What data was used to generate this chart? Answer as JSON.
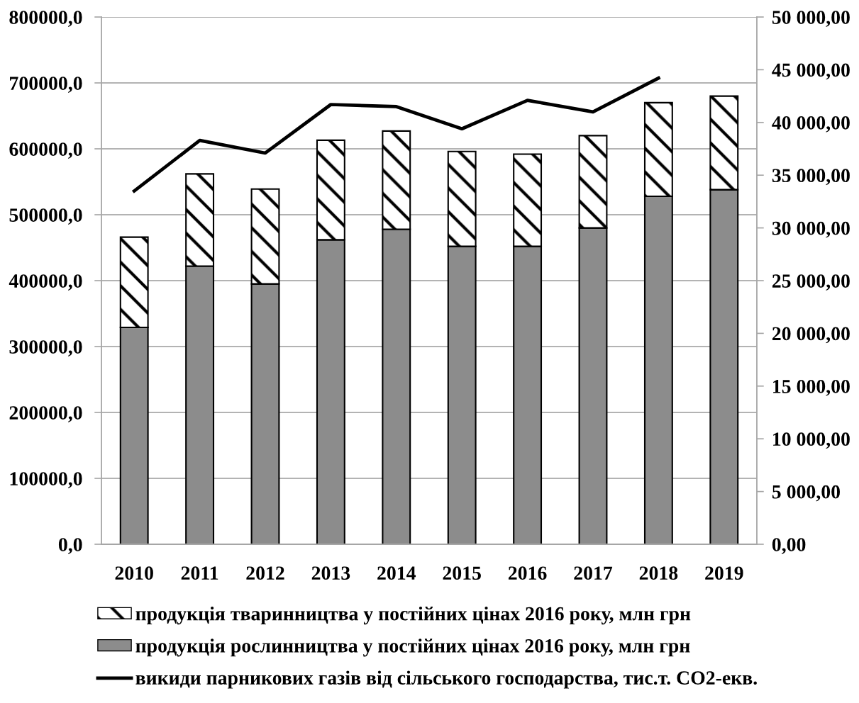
{
  "chart_data": {
    "type": "bar",
    "stacked": true,
    "categories": [
      "2010",
      "2011",
      "2012",
      "2013",
      "2014",
      "2015",
      "2016",
      "2017",
      "2018",
      "2019"
    ],
    "series": [
      {
        "name": "продукція рослинництва у постійних цінах 2016 року, млн грн",
        "color": "#8c8c8c",
        "values": [
          329000,
          422000,
          395000,
          462000,
          478000,
          452000,
          452000,
          480000,
          528000,
          538000
        ]
      },
      {
        "name": "продукція тваринництва у постійних цінах 2016 року, млн грн",
        "color": "#000000",
        "values": [
          137000,
          140000,
          144000,
          151000,
          149000,
          144000,
          140000,
          140000,
          142000,
          142000
        ]
      },
      {
        "name": "викиди парникових газів від сільського господарства, тис.т. СО2-екв.",
        "type": "line",
        "axis": "y2",
        "color": "#000000",
        "values": [
          33500,
          38300,
          37100,
          41700,
          41500,
          39400,
          42100,
          41000,
          44200,
          null
        ]
      }
    ],
    "ylim": [
      0,
      800000
    ],
    "yticks": [
      {
        "value": 0,
        "label": "0,0"
      },
      {
        "value": 100000,
        "label": "100000,0"
      },
      {
        "value": 200000,
        "label": "200000,0"
      },
      {
        "value": 300000,
        "label": "300000,0"
      },
      {
        "value": 400000,
        "label": "400000,0"
      },
      {
        "value": 500000,
        "label": "500000,0"
      },
      {
        "value": 600000,
        "label": "600000,0"
      },
      {
        "value": 700000,
        "label": "700000,0"
      },
      {
        "value": 800000,
        "label": "800000,0"
      }
    ],
    "y2lim": [
      0,
      50000
    ],
    "y2ticks": [
      {
        "value": 0,
        "label": "0,00"
      },
      {
        "value": 5000,
        "label": "5 000,00"
      },
      {
        "value": 10000,
        "label": "10 000,00"
      },
      {
        "value": 15000,
        "label": "15 000,00"
      },
      {
        "value": 20000,
        "label": "20 000,00"
      },
      {
        "value": 25000,
        "label": "25 000,00"
      },
      {
        "value": 30000,
        "label": "30 000,00"
      },
      {
        "value": 35000,
        "label": "35 000,00"
      },
      {
        "value": 40000,
        "label": "40 000,00"
      },
      {
        "value": 45000,
        "label": "45 000,00"
      },
      {
        "value": 50000,
        "label": "50 000,00"
      }
    ],
    "grid": "y",
    "legend": "bottom",
    "marker": "none",
    "line_style": "solid"
  }
}
